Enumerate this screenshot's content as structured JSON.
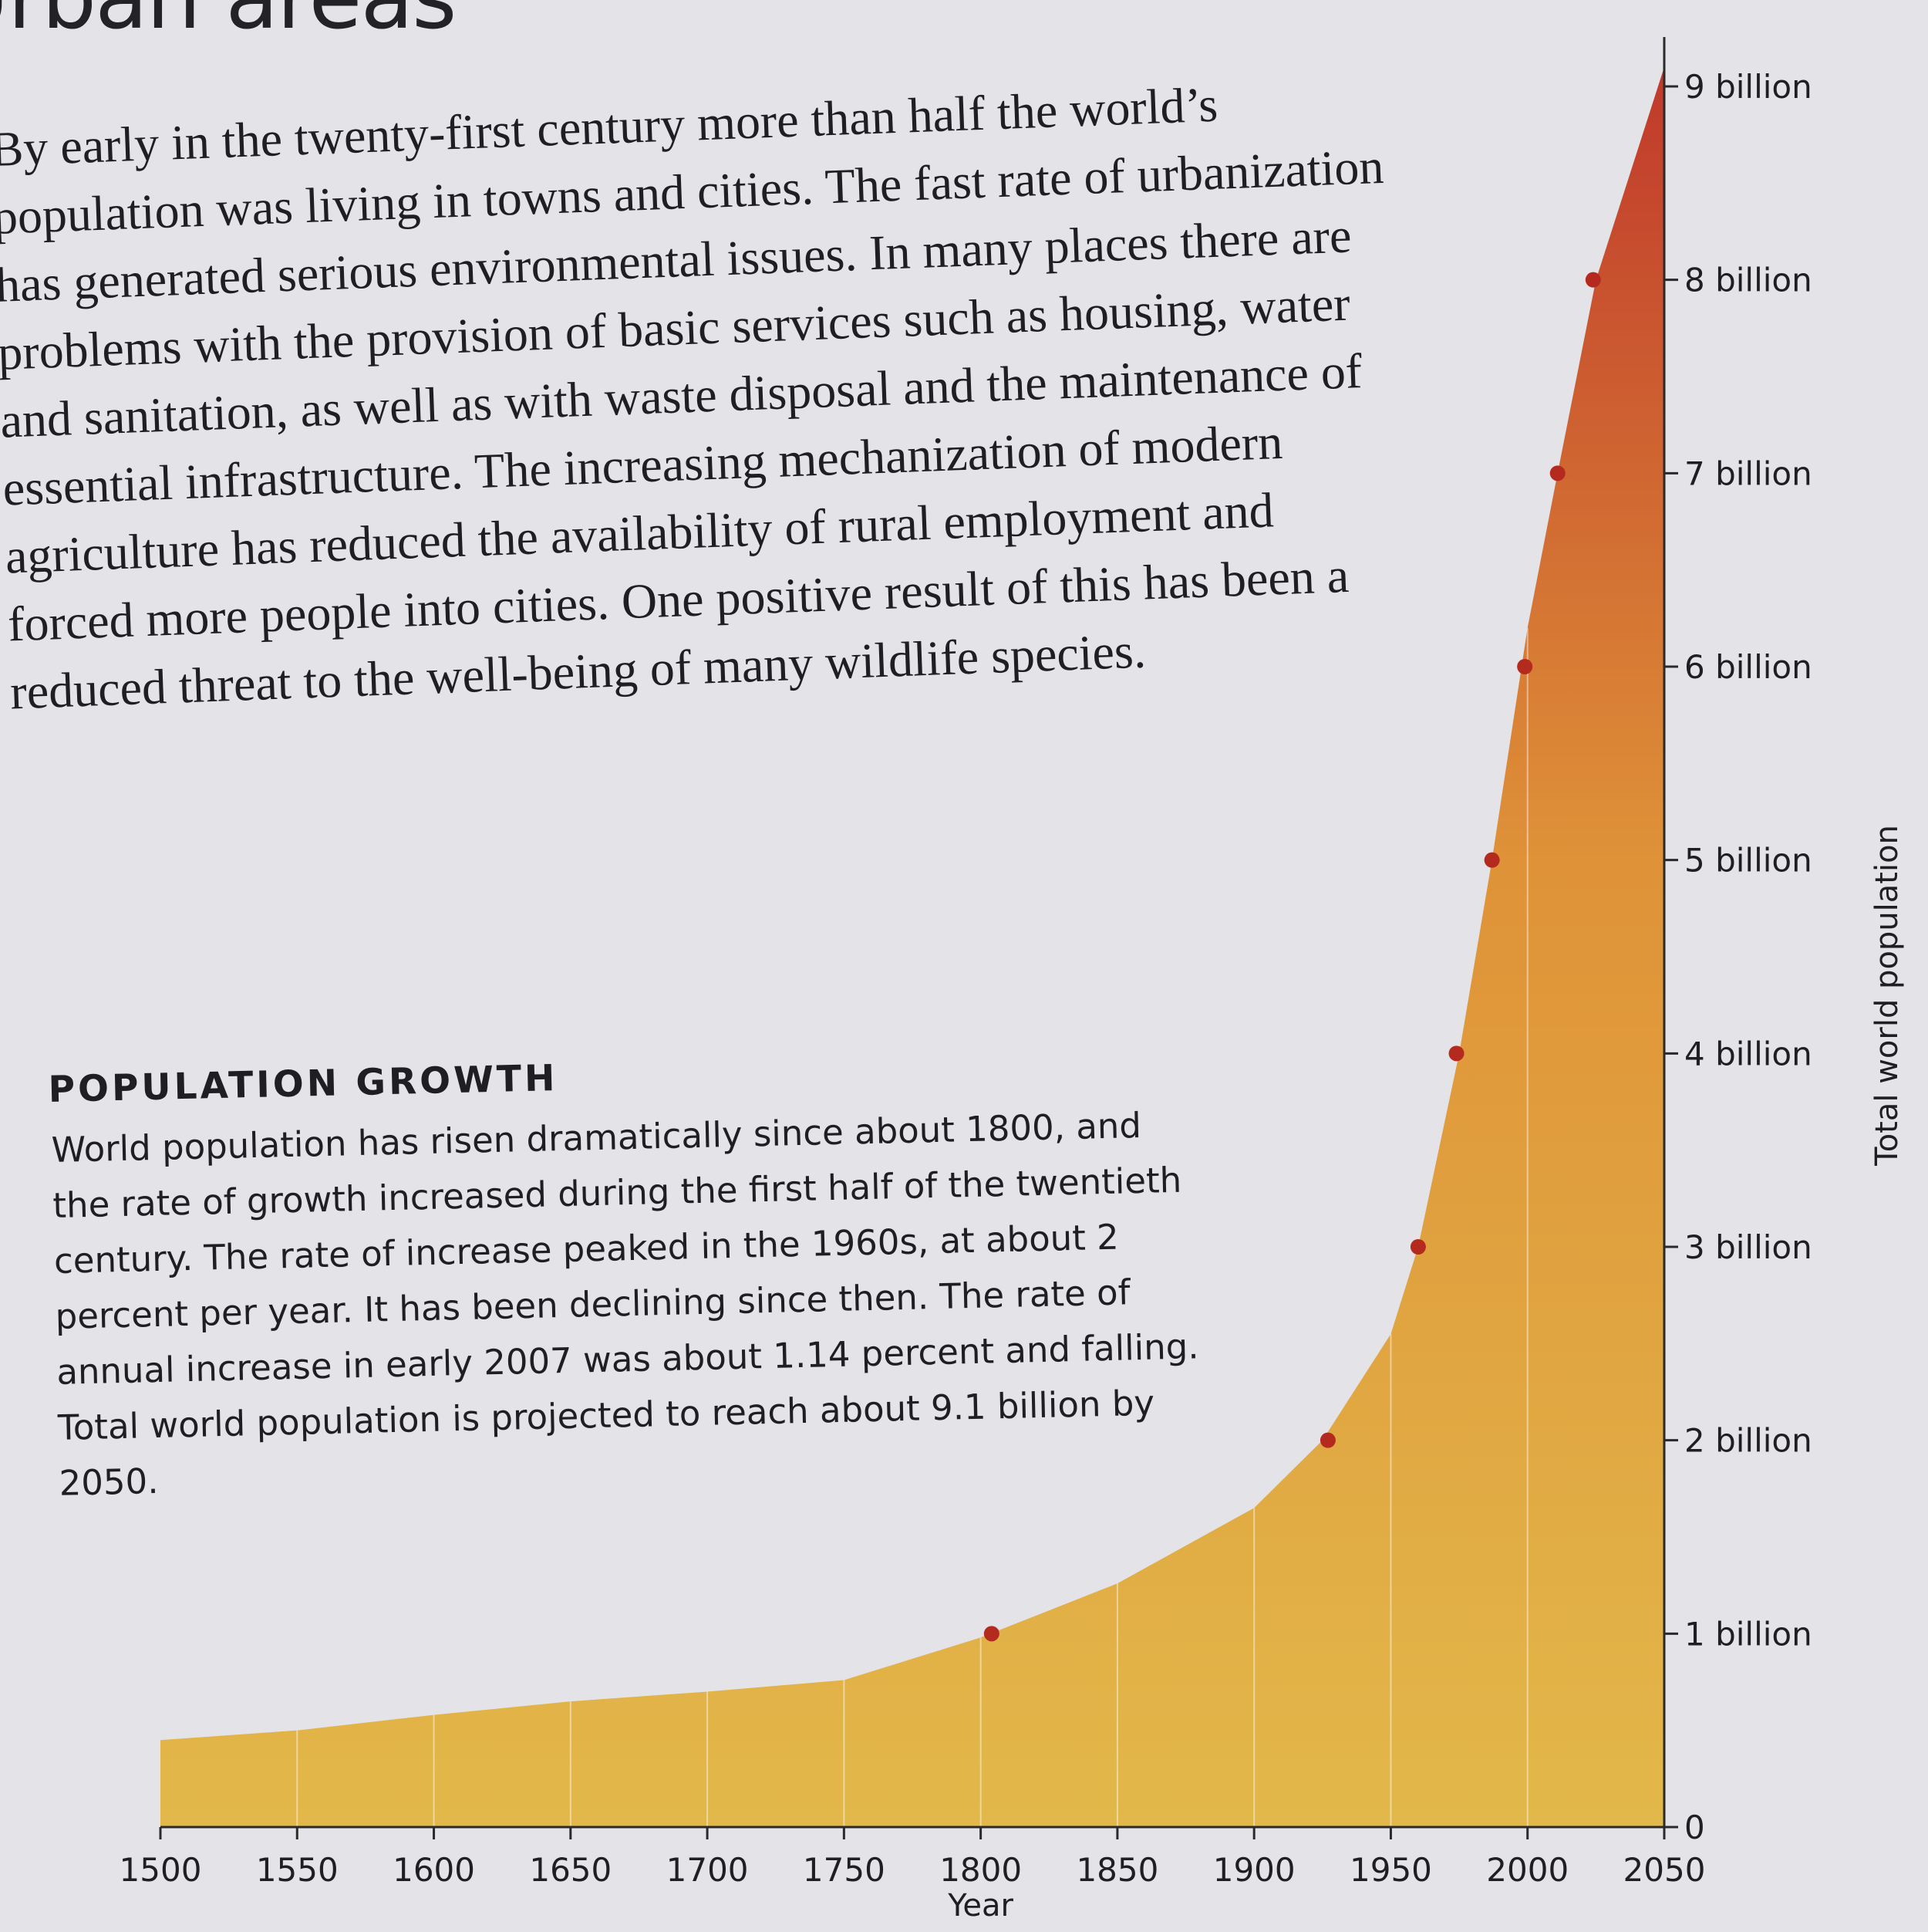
{
  "heading": "Urban areas",
  "intro_text": "By early in the twenty-first century more than half the world’s population was living in towns and cities. The fast rate of urbanization has generated serious environmental issues. In many places there are problems with the provision of basic services such as housing, water and sanitation, as well as with waste disposal and the maintenance of essential infrastructure. The increasing mechanization of modern agriculture has reduced the availability of rural employment and forced more people into cities. One positive result of this has been a reduced threat to the well-being of many wildlife species.",
  "box": {
    "title": "POPULATION GROWTH",
    "text": "World population has risen dramatically since about 1800, and the rate of growth increased during the first half of the twentieth century. The rate of increase peaked in the 1960s, at about 2 percent per year. It has been declining since then. The rate of annual increase in early 2007 was about 1.14 percent and falling. Total world population is projected to reach about 9.1 billion by 2050."
  },
  "colors": {
    "area_low": "#e2b84a",
    "area_mid": "#df9238",
    "area_high": "#c0392b",
    "marker": "#b52a1e",
    "axis": "#2a2a2a"
  },
  "chart_data": {
    "type": "area",
    "xlabel": "Year",
    "ylabel": "Total world population",
    "xlim": [
      1500,
      2050
    ],
    "ylim": [
      0,
      9
    ],
    "x_ticks": [
      1500,
      1550,
      1600,
      1650,
      1700,
      1750,
      1800,
      1850,
      1900,
      1950,
      2000,
      2050
    ],
    "y_ticks": [
      {
        "value": 0,
        "label": "0"
      },
      {
        "value": 1,
        "label": "1 billion"
      },
      {
        "value": 2,
        "label": "2 billion"
      },
      {
        "value": 3,
        "label": "3 billion"
      },
      {
        "value": 4,
        "label": "4 billion"
      },
      {
        "value": 5,
        "label": "5 billion"
      },
      {
        "value": 6,
        "label": "6 billion"
      },
      {
        "value": 7,
        "label": "7 billion"
      },
      {
        "value": 8,
        "label": "8 billion"
      },
      {
        "value": 9,
        "label": "9 billion"
      }
    ],
    "series": [
      {
        "x": [
          1500,
          1550,
          1600,
          1650,
          1700,
          1750,
          1800,
          1850,
          1900,
          1925,
          1950,
          1960,
          1975,
          1987,
          2000,
          2011,
          2025,
          2050
        ],
        "values": [
          0.45,
          0.5,
          0.58,
          0.65,
          0.7,
          0.76,
          0.98,
          1.26,
          1.65,
          2.0,
          2.55,
          3.0,
          4.0,
          5.0,
          6.2,
          7.0,
          8.0,
          9.1
        ]
      }
    ],
    "milestones": [
      {
        "year": 1804,
        "value": 1
      },
      {
        "year": 1927,
        "value": 2
      },
      {
        "year": 1960,
        "value": 3
      },
      {
        "year": 1974,
        "value": 4
      },
      {
        "year": 1987,
        "value": 5
      },
      {
        "year": 1999,
        "value": 6
      },
      {
        "year": 2011,
        "value": 7
      },
      {
        "year": 2024,
        "value": 8
      }
    ]
  }
}
